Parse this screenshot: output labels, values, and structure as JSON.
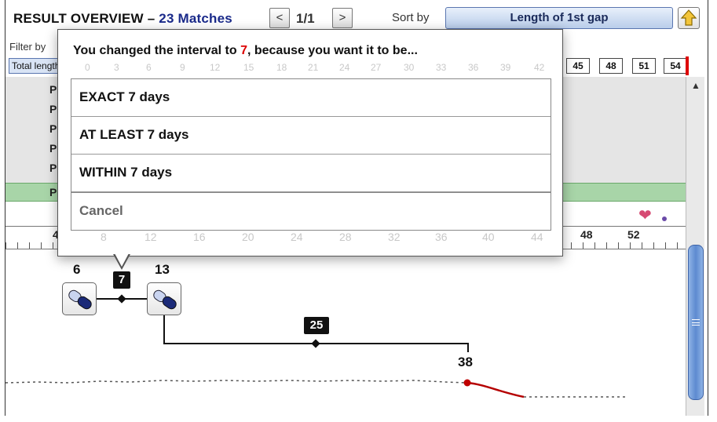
{
  "header": {
    "title": "RESULT OVERVIEW –",
    "matches": "23 Matches",
    "prev": "<",
    "page": "1/1",
    "next": ">",
    "sort_label": "Sort by",
    "sort_value": "Length of 1st gap",
    "sort_direction_icon": "up-arrow-icon"
  },
  "filter": {
    "label": "Filter by",
    "tag": "Total length",
    "visible_cells": [
      "45",
      "48",
      "51",
      "54"
    ]
  },
  "patients": [
    "P",
    "P",
    "P",
    "P",
    "P",
    "P"
  ],
  "timeline": {
    "visible_ticks": [
      "4",
      "48",
      "52"
    ],
    "events": [
      {
        "day": "6",
        "icon": "pill-capsule-icon"
      },
      {
        "day": "13",
        "icon": "pill-capsule-icon"
      },
      {
        "day": "38"
      }
    ],
    "gaps": [
      "7",
      "25"
    ]
  },
  "dialog": {
    "question_prefix": "You changed the interval to ",
    "question_value": "7",
    "question_suffix": ", because you want it to be...",
    "options": [
      "EXACT 7 days",
      "AT LEAST 7 days",
      "WITHIN 7 days"
    ],
    "cancel": "Cancel",
    "ghost_ticks_top": [
      "0",
      "3",
      "6",
      "9",
      "12",
      "15",
      "18",
      "21",
      "24",
      "27",
      "30",
      "33",
      "36",
      "39",
      "42"
    ],
    "ghost_ticks_bottom": [
      "8",
      "12",
      "16",
      "20",
      "24",
      "28",
      "32",
      "36",
      "40",
      "44"
    ]
  },
  "colors": {
    "accent": "#1a2a8a",
    "selected_row": "#a8d5a8",
    "highlight": "#dd0000"
  }
}
